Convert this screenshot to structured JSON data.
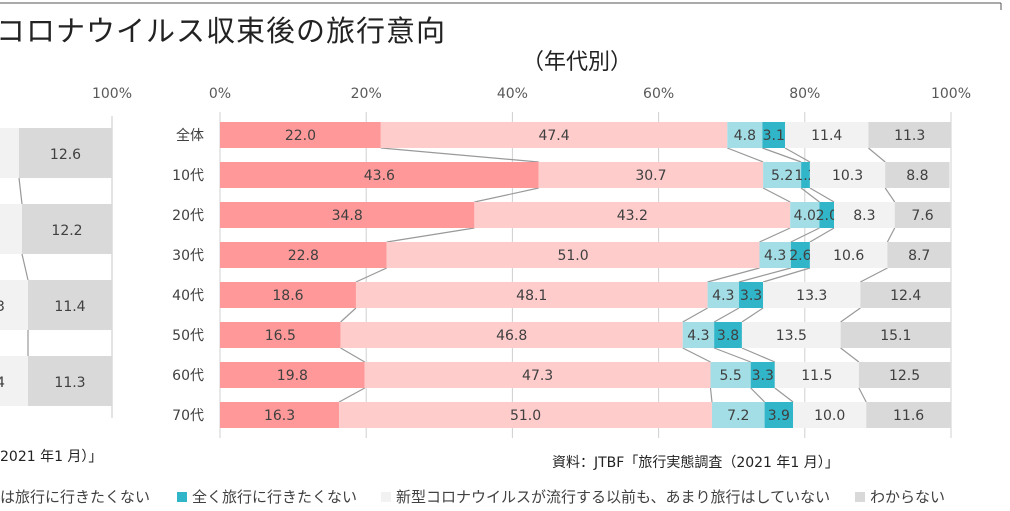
{
  "title": "コロナウイルス収束後の旅行意向",
  "subtitle": "（年代別）",
  "source_left": "2021 年1 月）」",
  "source": "資料：JTBF「旅行実態調査（2021 年1 月）」",
  "legend": [
    {
      "label": "は旅行に行きたくない",
      "color": null
    },
    {
      "label": "全く旅行に行きたくない",
      "color": "#31B5C9"
    },
    {
      "label": "新型コロナウイルスが流行する以前も、あまり旅行はしていない",
      "color": "#F2F2F2"
    },
    {
      "label": "わからない",
      "color": "#D9D9D9"
    }
  ],
  "colors": [
    "#FF9999",
    "#FFCCCC",
    "#A3DEE6",
    "#31B5C9",
    "#F2F2F2",
    "#D9D9D9"
  ],
  "chart_data": [
    {
      "type": "bar",
      "orientation": "horizontal",
      "stacked": true,
      "percent": true,
      "categories": [
        "全体",
        "10代",
        "20代",
        "30代",
        "40代",
        "50代",
        "60代",
        "70代"
      ],
      "xlim": [
        0,
        100
      ],
      "x_ticks": [
        "0%",
        "20%",
        "40%",
        "60%",
        "80%",
        "100%"
      ],
      "grid": true,
      "series_lines": true,
      "segments": [
        [
          22.0,
          47.4,
          4.8,
          3.1,
          11.4,
          11.3
        ],
        [
          43.6,
          30.7,
          5.2,
          1.2,
          10.3,
          8.8
        ],
        [
          34.8,
          43.2,
          4.0,
          2.0,
          8.3,
          7.6
        ],
        [
          22.8,
          51.0,
          4.3,
          2.6,
          10.6,
          8.7
        ],
        [
          18.6,
          48.1,
          4.3,
          3.3,
          13.3,
          12.4
        ],
        [
          16.5,
          46.8,
          4.3,
          3.8,
          13.5,
          15.1
        ],
        [
          19.8,
          47.3,
          5.5,
          3.3,
          11.5,
          12.5
        ],
        [
          16.3,
          51.0,
          7.2,
          3.9,
          10.0,
          11.6
        ]
      ]
    },
    {
      "type": "bar",
      "orientation": "horizontal",
      "stacked": true,
      "partial": true,
      "x_ticks": [
        "100%"
      ],
      "visible_labels": [
        "12.6",
        "12.2",
        "3",
        "11.4",
        "4",
        "11.3"
      ],
      "last_segment": [
        12.6,
        12.2,
        11.4,
        11.3
      ]
    }
  ]
}
